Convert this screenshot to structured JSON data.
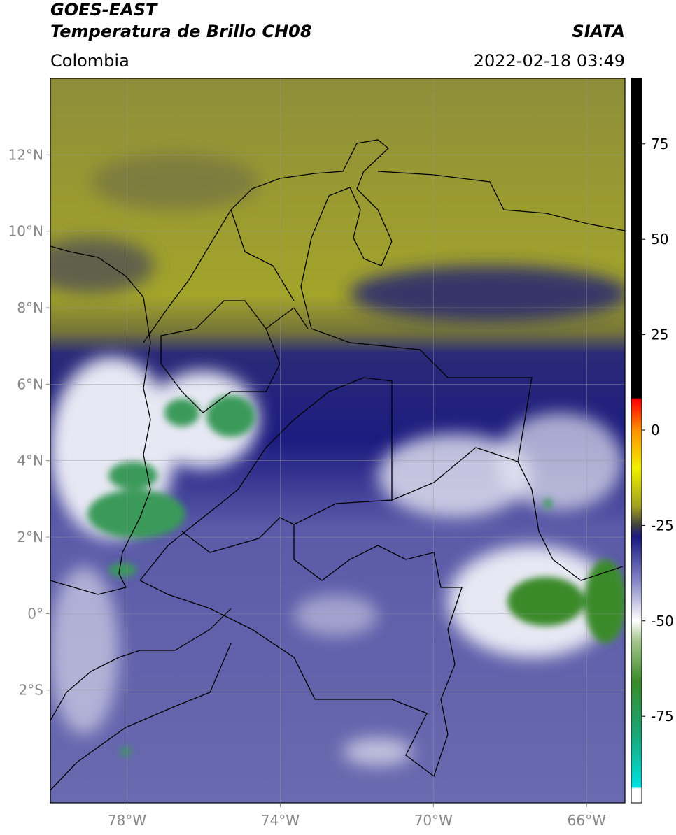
{
  "header": {
    "title": "GOES-EAST",
    "subtitle": "Temperatura de Brillo CH08",
    "source": "SIATA",
    "region": "Colombia",
    "datetime": "2022-02-18 03:49"
  },
  "chart_data": {
    "type": "map",
    "xlim": [
      -80,
      -65
    ],
    "ylim": [
      -4.95,
      14.0
    ],
    "xticks": [
      {
        "value": -78,
        "label": "78°W"
      },
      {
        "value": -74,
        "label": "74°W"
      },
      {
        "value": -70,
        "label": "70°W"
      },
      {
        "value": -66,
        "label": "66°W"
      }
    ],
    "yticks": [
      {
        "value": 12,
        "label": "12°N"
      },
      {
        "value": 10,
        "label": "10°N"
      },
      {
        "value": 8,
        "label": "8°N"
      },
      {
        "value": 6,
        "label": "6°N"
      },
      {
        "value": 4,
        "label": "4°N"
      },
      {
        "value": 2,
        "label": "2°N"
      },
      {
        "value": 0,
        "label": "0°"
      },
      {
        "value": -2,
        "label": "2°S"
      }
    ],
    "grid": true,
    "colorbar": {
      "lim": [
        -97.7,
        92.2
      ],
      "ticks": [
        75,
        50,
        25,
        0,
        -25,
        -50,
        -75
      ],
      "stops": [
        {
          "value": -97.7,
          "color": "#ffffff"
        },
        {
          "value": -94,
          "color": "#ffffff"
        },
        {
          "value": -93.5,
          "color": "#00e0e0"
        },
        {
          "value": -80,
          "color": "#1aa87a"
        },
        {
          "value": -66,
          "color": "#3a8a2a"
        },
        {
          "value": -55,
          "color": "#a8c890"
        },
        {
          "value": -50,
          "color": "#ffffff"
        },
        {
          "value": -40,
          "color": "#8a8ac8"
        },
        {
          "value": -28,
          "color": "#1a1a80"
        },
        {
          "value": -25,
          "color": "#404040"
        },
        {
          "value": -20,
          "color": "#a0a020"
        },
        {
          "value": -10,
          "color": "#f0f000"
        },
        {
          "value": 0,
          "color": "#ff9000"
        },
        {
          "value": 8,
          "color": "#ff0000"
        },
        {
          "value": 8.5,
          "color": "#000000"
        },
        {
          "value": 92.2,
          "color": "#000000"
        }
      ]
    }
  }
}
